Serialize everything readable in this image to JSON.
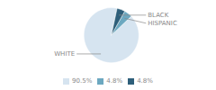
{
  "chart_data": {
    "type": "pie",
    "categories": [
      "WHITE",
      "HISPANIC",
      "BLACK"
    ],
    "values": [
      90.5,
      4.8,
      4.8
    ],
    "value_labels": [
      "90.5%",
      "4.8%",
      "4.8%"
    ],
    "colors": [
      "#d6e4f0",
      "#6ca8c0",
      "#2e5f7a"
    ],
    "legend": "bottom"
  }
}
